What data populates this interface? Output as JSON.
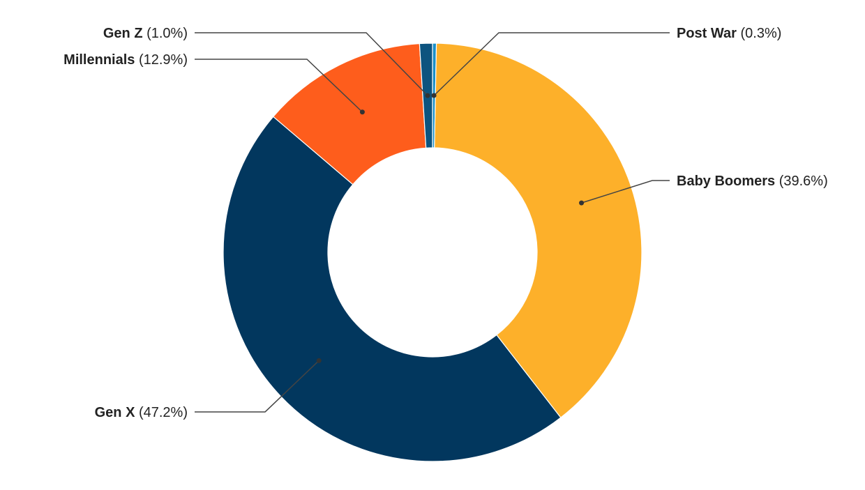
{
  "chart_data": {
    "type": "pie",
    "style": "donut",
    "categories": [
      "Post War",
      "Baby Boomers",
      "Gen X",
      "Millennials",
      "Gen Z"
    ],
    "values": [
      0.3,
      39.6,
      47.2,
      12.9,
      1.0
    ],
    "value_labels": [
      "(0.3%)",
      "(39.6%)",
      "(47.2%)",
      "(12.9%)",
      "(1.0%)"
    ],
    "colors": [
      "#1a8fc7",
      "#fdb02a",
      "#02375e",
      "#fe5d1c",
      "#0d547f"
    ],
    "title": "",
    "legend": "none",
    "labels_placement": "outside-with-leader-lines"
  }
}
